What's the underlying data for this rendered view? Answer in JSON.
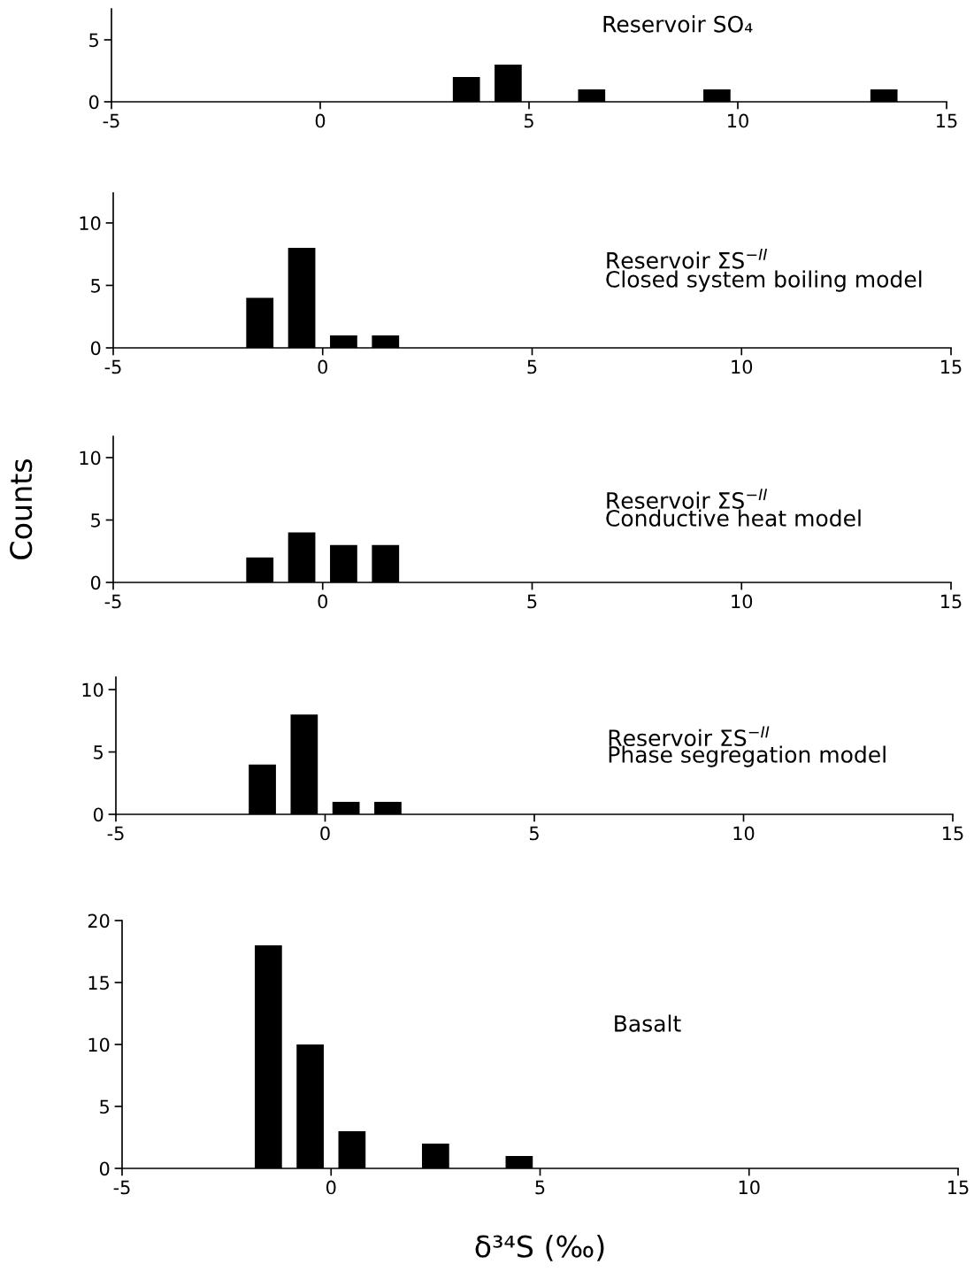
{
  "chart_data": [
    {
      "type": "histogram",
      "title": "Reservoir SO₄",
      "bins": [
        3,
        4,
        5,
        6,
        7,
        8,
        9,
        10,
        11,
        12,
        13,
        14
      ],
      "values": [
        2,
        3,
        0,
        1,
        0,
        0,
        1,
        0,
        0,
        0,
        1
      ],
      "color": "#000000",
      "xlim": [
        -5,
        15
      ],
      "xticks": [
        -5,
        0,
        5,
        10,
        15
      ],
      "ylim": [
        0,
        7.5
      ],
      "yticks": [
        0,
        5
      ],
      "grid": false,
      "legend": false
    },
    {
      "type": "histogram",
      "title": "Reservoir ΣS$^{−II}$",
      "subtitle": "Closed system boiling model",
      "bins": [
        -2,
        -1,
        0,
        1,
        2
      ],
      "values": [
        4,
        8,
        1,
        1
      ],
      "color": "#000000",
      "xlim": [
        -5,
        15
      ],
      "xticks": [
        -5,
        0,
        5,
        10,
        15
      ],
      "ylim": [
        0,
        12.4
      ],
      "yticks": [
        0,
        5,
        10
      ],
      "grid": false,
      "legend": false
    },
    {
      "type": "histogram",
      "title": "Reservoir ΣS$^{−II}$",
      "subtitle": "Conductive heat model",
      "ylabel": "Counts",
      "bins": [
        -2,
        -1,
        0,
        1,
        2
      ],
      "values": [
        2,
        4,
        3,
        3
      ],
      "color": "#000000",
      "xlim": [
        -5,
        15
      ],
      "xticks": [
        -5,
        0,
        5,
        10,
        15
      ],
      "ylim": [
        0,
        11.7
      ],
      "yticks": [
        0,
        5,
        10
      ],
      "grid": false,
      "legend": false
    },
    {
      "type": "histogram",
      "title": "Reservoir ΣS$^{−II}$",
      "subtitle": "Phase segregation model",
      "bins": [
        -2,
        -1,
        0,
        1,
        2
      ],
      "values": [
        4,
        8,
        1,
        1
      ],
      "color": "#000000",
      "xlim": [
        -5,
        15
      ],
      "xticks": [
        -5,
        0,
        5,
        10,
        15
      ],
      "ylim": [
        0,
        11
      ],
      "yticks": [
        0,
        5,
        10
      ],
      "grid": false,
      "legend": false
    },
    {
      "type": "histogram",
      "title": "Basalt",
      "xlabel": "δ³⁴S (‰)",
      "bins": [
        -2,
        -1,
        0,
        1,
        2,
        3,
        4,
        5
      ],
      "values": [
        18,
        10,
        3,
        0,
        2,
        0,
        1
      ],
      "color": "#000000",
      "xlim": [
        -5,
        15
      ],
      "xticks": [
        -5,
        0,
        5,
        10,
        15
      ],
      "ylim": [
        0,
        20
      ],
      "yticks": [
        0,
        5,
        10,
        15,
        20
      ],
      "grid": false,
      "legend": false
    }
  ]
}
